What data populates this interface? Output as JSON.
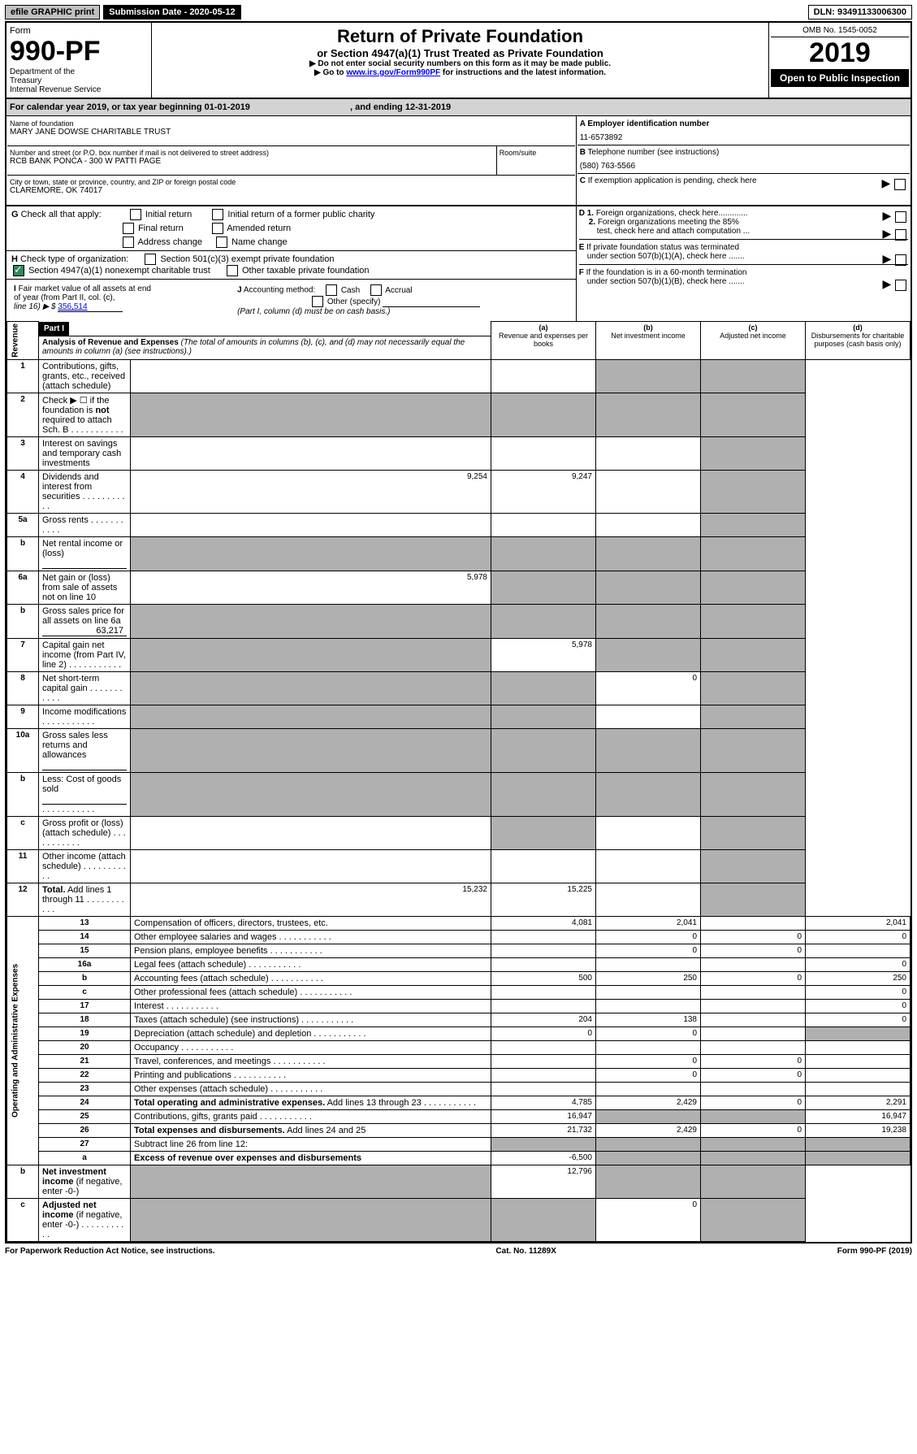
{
  "topbar": {
    "efile": "efile GRAPHIC print",
    "submission_label": "Submission Date - 2020-05-12",
    "dln": "DLN: 93491133006300"
  },
  "header": {
    "form_word": "Form",
    "form_number": "990-PF",
    "dept1": "Department of the",
    "dept2": "Treasury",
    "dept3": "Internal Revenue Service",
    "title": "Return of Private Foundation",
    "subtitle": "or Section 4947(a)(1) Trust Treated as Private Foundation",
    "warn1": "▶ Do not enter social security numbers on this form as it may be made public.",
    "warn2_pre": "▶ Go to ",
    "warn2_link": "www.irs.gov/Form990PF",
    "warn2_post": " for instructions and the latest information.",
    "omb": "OMB No. 1545-0052",
    "year": "2019",
    "open": "Open to Public Inspection"
  },
  "calendar": {
    "pre": "For calendar year 2019, or tax year beginning ",
    "begin": "01-01-2019",
    "mid": ", and ending ",
    "end": "12-31-2019"
  },
  "entity": {
    "name_label": "Name of foundation",
    "name": "MARY JANE DOWSE CHARITABLE TRUST",
    "addr_label": "Number and street (or P.O. box number if mail is not delivered to street address)",
    "addr": "RCB BANK PONCA - 300 W PATTI PAGE",
    "room_label": "Room/suite",
    "city_label": "City or town, state or province, country, and ZIP or foreign postal code",
    "city": "CLAREMORE, OK  74017",
    "a_label": "A Employer identification number",
    "ein": "11-6573892",
    "b_label": "B",
    "b_text": "Telephone number (see instructions)",
    "phone": "(580) 763-5566",
    "c_label": "C",
    "c_text": "If exemption application is pending, check here"
  },
  "g": {
    "label": "G",
    "text": "Check all that apply:",
    "opts": [
      "Initial return",
      "Initial return of a former public charity",
      "Final return",
      "Amended return",
      "Address change",
      "Name change"
    ]
  },
  "h": {
    "label": "H",
    "text": "Check type of organization:",
    "opt1": "Section 501(c)(3) exempt private foundation",
    "opt2": "Section 4947(a)(1) nonexempt charitable trust",
    "opt3": "Other taxable private foundation"
  },
  "i": {
    "label": "I",
    "text1": "Fair market value of all assets at end",
    "text2": "of year (from Part II, col. (c),",
    "text3": "line 16) ▶ $",
    "value": "356,514"
  },
  "j": {
    "label": "J",
    "text": "Accounting method:",
    "cash": "Cash",
    "accrual": "Accrual",
    "other": "Other (specify)",
    "note": "(Part I, column (d) must be on cash basis.)"
  },
  "d": {
    "d1": "D 1.",
    "d1_text": "Foreign organizations, check here.............",
    "d2": "2.",
    "d2_text1": "Foreign organizations meeting the 85%",
    "d2_text2": "test, check here and attach computation ...",
    "e": "E",
    "e_text1": "If private foundation status was terminated",
    "e_text2": "under section 507(b)(1)(A), check here .......",
    "f": "F",
    "f_text1": "If the foundation is in a 60-month termination",
    "f_text2": "under section 507(b)(1)(B), check here ......."
  },
  "part1": {
    "label": "Part I",
    "title": "Analysis of Revenue and Expenses",
    "title_note": "(The total of amounts in columns (b), (c), and (d) may not necessarily equal the amounts in column (a) (see instructions).)",
    "col_a": "(a)",
    "col_a_text": "Revenue and expenses per books",
    "col_b": "(b)",
    "col_b_text": "Net investment income",
    "col_c": "(c)",
    "col_c_text": "Adjusted net income",
    "col_d": "(d)",
    "col_d_text": "Disbursements for charitable purposes (cash basis only)",
    "rev_label": "Revenue",
    "oae_label": "Operating and Administrative Expenses"
  },
  "lines": [
    {
      "n": "1",
      "d": "Contributions, gifts, grants, etc., received (attach schedule)",
      "a": "",
      "b": "",
      "c": "",
      "dd": "",
      "ga": false,
      "gc": true,
      "gd": true
    },
    {
      "n": "2",
      "d": "Check ▶ ☐ if the foundation is <b>not</b> required to attach Sch. B",
      "dots": true,
      "a": "",
      "b": "",
      "c": "",
      "dd": "",
      "ga": true,
      "gb": true,
      "gc": true,
      "gd": true
    },
    {
      "n": "3",
      "d": "Interest on savings and temporary cash investments",
      "a": "",
      "b": "",
      "c": "",
      "dd": "",
      "gd": true
    },
    {
      "n": "4",
      "d": "Dividends and interest from securities",
      "dots": true,
      "a": "9,254",
      "b": "9,247",
      "c": "",
      "dd": "",
      "gd": true
    },
    {
      "n": "5a",
      "d": "Gross rents",
      "dots": true,
      "a": "",
      "b": "",
      "c": "",
      "dd": "",
      "gd": true
    },
    {
      "n": "b",
      "d": "Net rental income or (loss)",
      "underline": true,
      "a": "",
      "b": "",
      "c": "",
      "dd": "",
      "ga": true,
      "gb": true,
      "gc": true,
      "gd": true
    },
    {
      "n": "6a",
      "d": "Net gain or (loss) from sale of assets not on line 10",
      "a": "5,978",
      "b": "",
      "c": "",
      "dd": "",
      "gb": true,
      "gc": true,
      "gd": true
    },
    {
      "n": "b",
      "d": "Gross sales price for all assets on line 6a",
      "underline": true,
      "uval": "63,217",
      "a": "",
      "b": "",
      "c": "",
      "dd": "",
      "ga": true,
      "gb": true,
      "gc": true,
      "gd": true
    },
    {
      "n": "7",
      "d": "Capital gain net income (from Part IV, line 2)",
      "dots": true,
      "a": "",
      "b": "5,978",
      "c": "",
      "dd": "",
      "ga": true,
      "gc": true,
      "gd": true
    },
    {
      "n": "8",
      "d": "Net short-term capital gain",
      "dots": true,
      "a": "",
      "b": "",
      "c": "0",
      "dd": "",
      "ga": true,
      "gb": true,
      "gd": true
    },
    {
      "n": "9",
      "d": "Income modifications",
      "dots": true,
      "a": "",
      "b": "",
      "c": "",
      "dd": "",
      "ga": true,
      "gb": true,
      "gd": true
    },
    {
      "n": "10a",
      "d": "Gross sales less returns and allowances",
      "underline": true,
      "a": "",
      "b": "",
      "c": "",
      "dd": "",
      "ga": true,
      "gb": true,
      "gc": true,
      "gd": true
    },
    {
      "n": "b",
      "d": "Less: Cost of goods sold",
      "dots": true,
      "underline": true,
      "a": "",
      "b": "",
      "c": "",
      "dd": "",
      "ga": true,
      "gb": true,
      "gc": true,
      "gd": true
    },
    {
      "n": "c",
      "d": "Gross profit or (loss) (attach schedule)",
      "dots": true,
      "a": "",
      "b": "",
      "c": "",
      "dd": "",
      "gb": true,
      "gd": true
    },
    {
      "n": "11",
      "d": "Other income (attach schedule)",
      "dots": true,
      "a": "",
      "b": "",
      "c": "",
      "dd": "",
      "gd": true
    },
    {
      "n": "12",
      "d": "<b>Total.</b> Add lines 1 through 11",
      "dots": true,
      "a": "15,232",
      "b": "15,225",
      "c": "",
      "dd": "",
      "gd": true
    },
    {
      "n": "13",
      "d": "Compensation of officers, directors, trustees, etc.",
      "a": "4,081",
      "b": "2,041",
      "c": "",
      "dd": "2,041"
    },
    {
      "n": "14",
      "d": "Other employee salaries and wages",
      "dots": true,
      "a": "",
      "b": "0",
      "c": "0",
      "dd": "0"
    },
    {
      "n": "15",
      "d": "Pension plans, employee benefits",
      "dots": true,
      "a": "",
      "b": "0",
      "c": "0",
      "dd": ""
    },
    {
      "n": "16a",
      "d": "Legal fees (attach schedule)",
      "dots": true,
      "a": "",
      "b": "",
      "c": "",
      "dd": "0"
    },
    {
      "n": "b",
      "d": "Accounting fees (attach schedule)",
      "dots": true,
      "a": "500",
      "b": "250",
      "c": "0",
      "dd": "250"
    },
    {
      "n": "c",
      "d": "Other professional fees (attach schedule)",
      "dots": true,
      "a": "",
      "b": "",
      "c": "",
      "dd": "0"
    },
    {
      "n": "17",
      "d": "Interest",
      "dots": true,
      "a": "",
      "b": "",
      "c": "",
      "dd": "0"
    },
    {
      "n": "18",
      "d": "Taxes (attach schedule) (see instructions)",
      "dots": true,
      "a": "204",
      "b": "138",
      "c": "",
      "dd": "0"
    },
    {
      "n": "19",
      "d": "Depreciation (attach schedule) and depletion",
      "dots": true,
      "a": "0",
      "b": "0",
      "c": "",
      "dd": "",
      "gd": true
    },
    {
      "n": "20",
      "d": "Occupancy",
      "dots": true,
      "a": "",
      "b": "",
      "c": "",
      "dd": ""
    },
    {
      "n": "21",
      "d": "Travel, conferences, and meetings",
      "dots": true,
      "a": "",
      "b": "0",
      "c": "0",
      "dd": ""
    },
    {
      "n": "22",
      "d": "Printing and publications",
      "dots": true,
      "a": "",
      "b": "0",
      "c": "0",
      "dd": ""
    },
    {
      "n": "23",
      "d": "Other expenses (attach schedule)",
      "dots": true,
      "a": "",
      "b": "",
      "c": "",
      "dd": ""
    },
    {
      "n": "24",
      "d": "<b>Total operating and administrative expenses.</b> Add lines 13 through 23",
      "dots": true,
      "a": "4,785",
      "b": "2,429",
      "c": "0",
      "dd": "2,291"
    },
    {
      "n": "25",
      "d": "Contributions, gifts, grants paid",
      "dots": true,
      "a": "16,947",
      "b": "",
      "c": "",
      "dd": "16,947",
      "gb": true,
      "gc": true
    },
    {
      "n": "26",
      "d": "<b>Total expenses and disbursements.</b> Add lines 24 and 25",
      "a": "21,732",
      "b": "2,429",
      "c": "0",
      "dd": "19,238"
    },
    {
      "n": "27",
      "d": "Subtract line 26 from line 12:",
      "a": "",
      "b": "",
      "c": "",
      "dd": "",
      "ga": true,
      "gb": true,
      "gc": true,
      "gd": true
    },
    {
      "n": "a",
      "d": "<b>Excess of revenue over expenses and disbursements</b>",
      "a": "-6,500",
      "b": "",
      "c": "",
      "dd": "",
      "gb": true,
      "gc": true,
      "gd": true
    },
    {
      "n": "b",
      "d": "<b>Net investment income</b> (if negative, enter -0-)",
      "a": "",
      "b": "12,796",
      "c": "",
      "dd": "",
      "ga": true,
      "gc": true,
      "gd": true
    },
    {
      "n": "c",
      "d": "<b>Adjusted net income</b> (if negative, enter -0-)",
      "dots": true,
      "a": "",
      "b": "",
      "c": "0",
      "dd": "",
      "ga": true,
      "gb": true,
      "gd": true
    }
  ],
  "footer": {
    "left": "For Paperwork Reduction Act Notice, see instructions.",
    "mid": "Cat. No. 11289X",
    "right": "Form 990-PF (2019)"
  }
}
